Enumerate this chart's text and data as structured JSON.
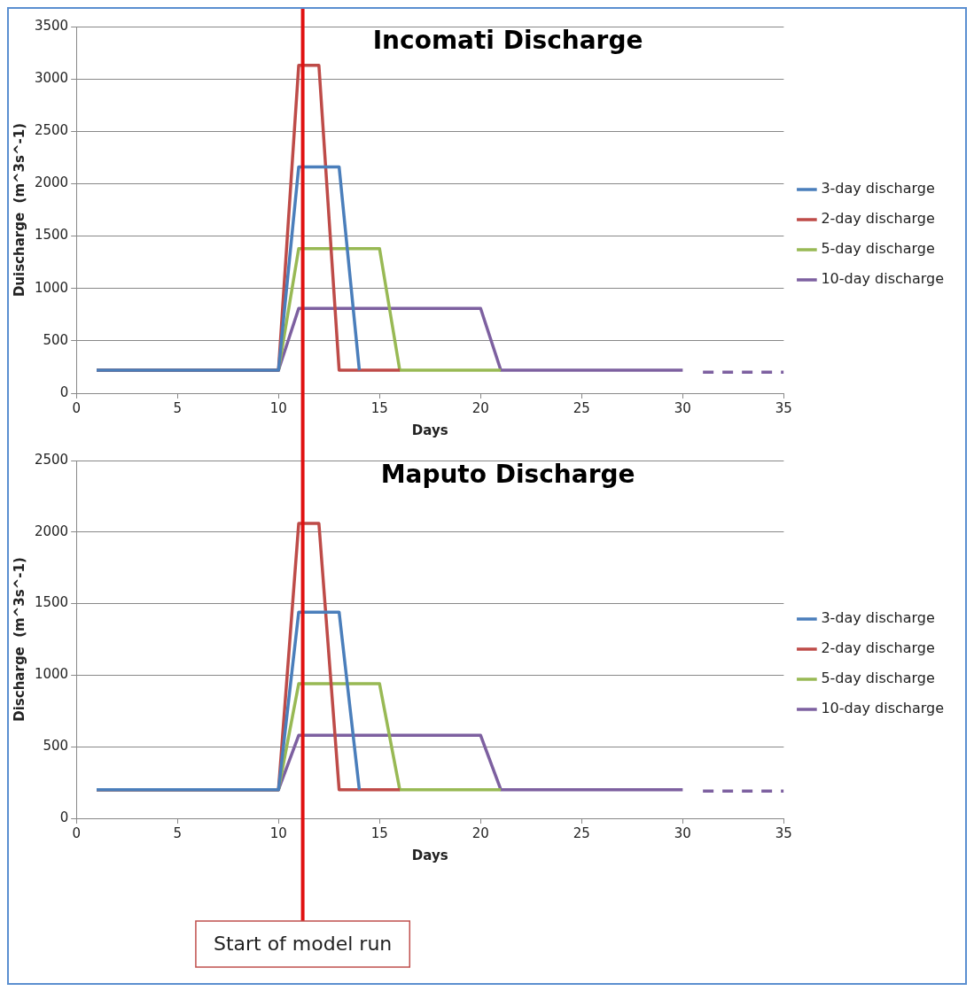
{
  "chart_data": [
    {
      "type": "line",
      "title": "Incomati Discharge",
      "xlabel": "Days",
      "ylabel": "Duischarge  (m^3s^-1)",
      "xlim": [
        0,
        35
      ],
      "xticks": [
        0,
        5,
        10,
        15,
        20,
        25,
        30,
        35
      ],
      "ylim": [
        0,
        3500
      ],
      "yticks": [
        0,
        500,
        1000,
        1500,
        2000,
        2500,
        3000,
        3500
      ],
      "grid": "y",
      "legend": "right",
      "marker": "none",
      "series": [
        {
          "name": "3-day discharge",
          "color": "#4a7ebb",
          "x": [
            1,
            10,
            11,
            13,
            14
          ],
          "values": [
            220,
            220,
            2160,
            2160,
            220
          ]
        },
        {
          "name": "2-day discharge",
          "color": "#be4b48",
          "x": [
            1,
            10,
            11,
            12,
            13,
            16
          ],
          "values": [
            220,
            220,
            3130,
            3130,
            220,
            220
          ]
        },
        {
          "name": "5-day discharge",
          "color": "#98b954",
          "x": [
            1,
            10,
            11,
            15,
            16,
            21
          ],
          "values": [
            220,
            220,
            1380,
            1380,
            220,
            220
          ]
        },
        {
          "name": "10-day discharge",
          "color": "#7d60a0",
          "x": [
            1,
            10,
            11,
            20,
            21,
            30
          ],
          "values": [
            220,
            220,
            810,
            810,
            220,
            220
          ]
        },
        {
          "color": "#7d60a0",
          "x": [
            31,
            35
          ],
          "values": [
            200,
            200
          ],
          "line_style": "dashed"
        }
      ],
      "ref_lines": [
        {
          "axis": "x",
          "value": 11.2,
          "color": "#e01010"
        }
      ]
    },
    {
      "type": "line",
      "title": "Maputo Discharge",
      "xlabel": "Days",
      "ylabel": "Discharge  (m^3s^-1)",
      "xlim": [
        0,
        35
      ],
      "xticks": [
        0,
        5,
        10,
        15,
        20,
        25,
        30,
        35
      ],
      "ylim": [
        0,
        2500
      ],
      "yticks": [
        0,
        500,
        1000,
        1500,
        2000,
        2500
      ],
      "grid": "y",
      "legend": "right",
      "marker": "none",
      "series": [
        {
          "name": "3-day discharge",
          "color": "#4a7ebb",
          "x": [
            1,
            10,
            11,
            13,
            14
          ],
          "values": [
            200,
            200,
            1440,
            1440,
            200
          ]
        },
        {
          "name": "2-day discharge",
          "color": "#be4b48",
          "x": [
            1,
            10,
            11,
            12,
            13,
            16
          ],
          "values": [
            200,
            200,
            2060,
            2060,
            200,
            200
          ]
        },
        {
          "name": "5-day discharge",
          "color": "#98b954",
          "x": [
            1,
            10,
            11,
            15,
            16,
            21
          ],
          "values": [
            200,
            200,
            940,
            940,
            200,
            200
          ]
        },
        {
          "name": "10-day discharge",
          "color": "#7d60a0",
          "x": [
            1,
            10,
            11,
            20,
            21,
            30
          ],
          "values": [
            200,
            200,
            580,
            580,
            200,
            200
          ]
        },
        {
          "color": "#7d60a0",
          "x": [
            31,
            35
          ],
          "values": [
            190,
            190
          ],
          "line_style": "dashed"
        }
      ],
      "ref_lines": [
        {
          "axis": "x",
          "value": 11.2,
          "label": "Start of model run",
          "color": "#e01010"
        }
      ]
    }
  ]
}
